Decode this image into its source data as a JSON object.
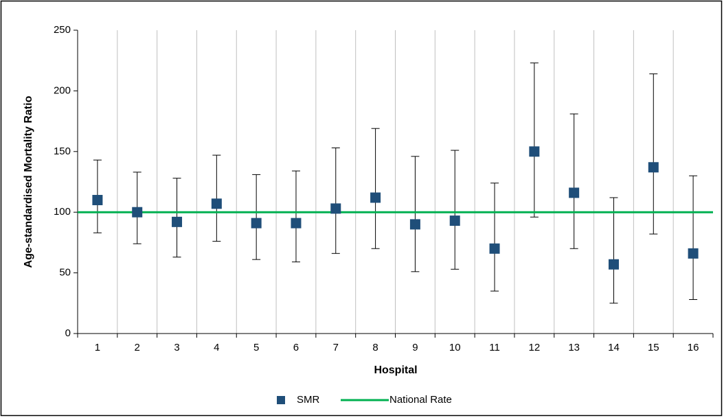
{
  "chart_data": {
    "type": "errorbar",
    "x_label": "Hospital",
    "y_label": "Age-standardised Mortality Ratio",
    "categories": [
      "1",
      "2",
      "3",
      "4",
      "5",
      "6",
      "7",
      "8",
      "9",
      "10",
      "11",
      "12",
      "13",
      "14",
      "15",
      "16"
    ],
    "series": [
      {
        "name": "SMR",
        "color": "#1f4e79",
        "values": [
          110,
          100,
          92,
          107,
          91,
          91,
          103,
          112,
          90,
          93,
          70,
          150,
          116,
          57,
          137,
          66
        ],
        "lower": [
          83,
          74,
          63,
          76,
          61,
          59,
          66,
          70,
          51,
          53,
          35,
          96,
          70,
          25,
          82,
          28
        ],
        "upper": [
          143,
          133,
          128,
          147,
          131,
          134,
          153,
          169,
          146,
          151,
          124,
          223,
          181,
          112,
          214,
          130
        ]
      }
    ],
    "reference_line": {
      "name": "National Rate",
      "color": "#00b050",
      "value": 100
    },
    "ylim": [
      0,
      250
    ],
    "yticks": [
      0,
      50,
      100,
      150,
      200,
      250
    ],
    "grid": true,
    "legend": "bottom"
  }
}
